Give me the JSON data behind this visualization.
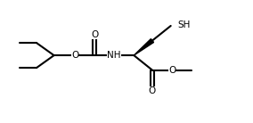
{
  "background_color": "#ffffff",
  "line_color": "#000000",
  "line_width": 1.5,
  "font_size": 7.5,
  "figsize": [
    2.84,
    1.38
  ],
  "dpi": 100,
  "xlim": [
    0,
    10
  ],
  "ylim": [
    0,
    5
  ],
  "labels": {
    "O_boc": "O",
    "O_carb": "O",
    "NH": "NH",
    "O_ester_dbl": "O",
    "O_ester_s": "O",
    "SH": "SH"
  }
}
